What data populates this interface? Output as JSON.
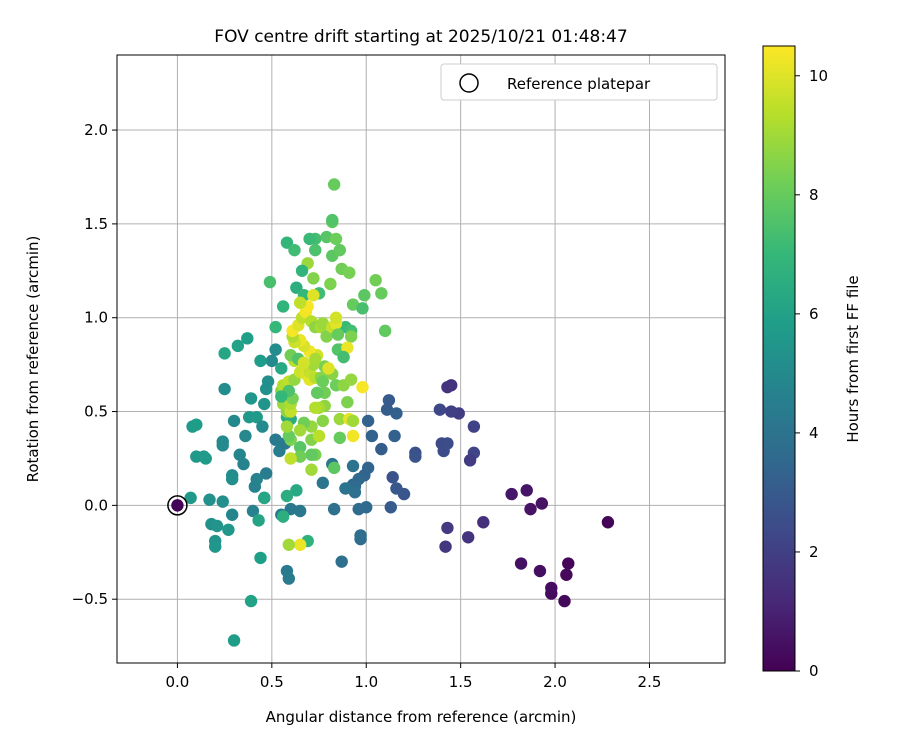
{
  "chart_data": {
    "type": "scatter",
    "title": "FOV centre drift starting at 2025/10/21 01:48:47",
    "xlabel": "Angular distance from reference (arcmin)",
    "ylabel": "Rotation from reference (arcmin)",
    "xlim": [
      -0.32,
      2.9
    ],
    "ylim": [
      -0.84,
      2.4
    ],
    "xticks": [
      0.0,
      0.5,
      1.0,
      1.5,
      2.0,
      2.5
    ],
    "xtick_labels": [
      "0.0",
      "0.5",
      "1.0",
      "1.5",
      "2.0",
      "2.5"
    ],
    "yticks": [
      -0.5,
      0.0,
      0.5,
      1.0,
      1.5,
      2.0
    ],
    "ytick_labels": [
      "−0.5",
      "0.0",
      "0.5",
      "1.0",
      "1.5",
      "2.0"
    ],
    "grid": true,
    "legend": {
      "position": "top-right",
      "entries": [
        "Reference platepar"
      ]
    },
    "reference_point": {
      "x": 0.0,
      "y": 0.0,
      "label": "Reference platepar"
    },
    "colorbar": {
      "label": "Hours from first FF file",
      "range": [
        0,
        10.5
      ],
      "ticks": [
        0,
        2,
        4,
        6,
        8,
        10
      ],
      "tick_labels": [
        "0",
        "2",
        "4",
        "6",
        "8",
        "10"
      ],
      "colormap": "viridis",
      "colormap_stops": [
        "#440154",
        "#482878",
        "#3e4989",
        "#31688e",
        "#26828e",
        "#1f9e89",
        "#35b779",
        "#6ece58",
        "#b5de2b",
        "#fde725"
      ]
    },
    "points": [
      {
        "x": 0.0,
        "y": 0.0,
        "h": 0.05
      },
      {
        "x": 2.28,
        "y": -0.09,
        "h": 0.1
      },
      {
        "x": 2.07,
        "y": -0.31,
        "h": 0.15
      },
      {
        "x": 2.06,
        "y": -0.37,
        "h": 0.2
      },
      {
        "x": 2.05,
        "y": -0.51,
        "h": 0.25
      },
      {
        "x": 1.98,
        "y": -0.47,
        "h": 0.3
      },
      {
        "x": 1.98,
        "y": -0.44,
        "h": 0.35
      },
      {
        "x": 1.92,
        "y": -0.35,
        "h": 0.4
      },
      {
        "x": 1.82,
        "y": -0.31,
        "h": 0.45
      },
      {
        "x": 1.93,
        "y": 0.01,
        "h": 0.5
      },
      {
        "x": 1.87,
        "y": -0.02,
        "h": 0.55
      },
      {
        "x": 1.85,
        "y": 0.08,
        "h": 0.6
      },
      {
        "x": 1.77,
        "y": 0.06,
        "h": 0.65
      },
      {
        "x": 1.62,
        "y": -0.09,
        "h": 1.4
      },
      {
        "x": 1.54,
        "y": -0.17,
        "h": 1.6
      },
      {
        "x": 1.42,
        "y": -0.22,
        "h": 1.7
      },
      {
        "x": 1.43,
        "y": -0.12,
        "h": 1.8
      },
      {
        "x": 1.45,
        "y": 0.64,
        "h": 1.5
      },
      {
        "x": 1.43,
        "y": 0.63,
        "h": 1.6
      },
      {
        "x": 1.49,
        "y": 0.49,
        "h": 1.9
      },
      {
        "x": 1.45,
        "y": 0.5,
        "h": 2.0
      },
      {
        "x": 1.57,
        "y": 0.42,
        "h": 2.1
      },
      {
        "x": 1.57,
        "y": 0.28,
        "h": 2.2
      },
      {
        "x": 1.55,
        "y": 0.24,
        "h": 1.9
      },
      {
        "x": 1.39,
        "y": 0.51,
        "h": 2.3
      },
      {
        "x": 1.4,
        "y": 0.33,
        "h": 2.4
      },
      {
        "x": 1.41,
        "y": 0.29,
        "h": 2.5
      },
      {
        "x": 1.43,
        "y": 0.33,
        "h": 2.5
      },
      {
        "x": 1.26,
        "y": 0.28,
        "h": 2.6
      },
      {
        "x": 1.26,
        "y": 0.26,
        "h": 2.7
      },
      {
        "x": 1.14,
        "y": 0.15,
        "h": 2.7
      },
      {
        "x": 1.2,
        "y": 0.06,
        "h": 2.8
      },
      {
        "x": 1.16,
        "y": 0.09,
        "h": 2.9
      },
      {
        "x": 1.13,
        "y": -0.01,
        "h": 3.0
      },
      {
        "x": 1.08,
        "y": 0.3,
        "h": 3.1
      },
      {
        "x": 1.15,
        "y": 0.37,
        "h": 3.2
      },
      {
        "x": 1.11,
        "y": 0.51,
        "h": 3.1
      },
      {
        "x": 1.16,
        "y": 0.49,
        "h": 3.2
      },
      {
        "x": 1.12,
        "y": 0.56,
        "h": 3.0
      },
      {
        "x": 1.01,
        "y": 0.45,
        "h": 3.3
      },
      {
        "x": 1.03,
        "y": 0.37,
        "h": 3.3
      },
      {
        "x": 0.99,
        "y": 0.16,
        "h": 3.4
      },
      {
        "x": 1.01,
        "y": 0.2,
        "h": 3.4
      },
      {
        "x": 0.96,
        "y": 0.14,
        "h": 3.5
      },
      {
        "x": 0.93,
        "y": 0.11,
        "h": 3.5
      },
      {
        "x": 0.94,
        "y": 0.1,
        "h": 3.6
      },
      {
        "x": 1.0,
        "y": -0.01,
        "h": 3.6
      },
      {
        "x": 0.96,
        "y": -0.02,
        "h": 3.7
      },
      {
        "x": 0.97,
        "y": -0.18,
        "h": 3.7
      },
      {
        "x": 0.97,
        "y": -0.16,
        "h": 3.8
      },
      {
        "x": 0.87,
        "y": -0.3,
        "h": 3.8
      },
      {
        "x": 0.83,
        "y": -0.02,
        "h": 3.9
      },
      {
        "x": 0.94,
        "y": 0.07,
        "h": 3.9
      },
      {
        "x": 0.89,
        "y": 0.09,
        "h": 4.0
      },
      {
        "x": 0.93,
        "y": 0.21,
        "h": 4.0
      },
      {
        "x": 0.77,
        "y": 0.12,
        "h": 4.1
      },
      {
        "x": 0.82,
        "y": 0.22,
        "h": 4.1
      },
      {
        "x": 0.65,
        "y": -0.03,
        "h": 4.2
      },
      {
        "x": 0.58,
        "y": -0.35,
        "h": 4.3
      },
      {
        "x": 0.59,
        "y": -0.39,
        "h": 4.4
      },
      {
        "x": 0.6,
        "y": -0.02,
        "h": 4.2
      },
      {
        "x": 0.55,
        "y": -0.05,
        "h": 4.4
      },
      {
        "x": 0.46,
        "y": 0.04,
        "h": 4.5
      },
      {
        "x": 0.47,
        "y": 0.17,
        "h": 4.4
      },
      {
        "x": 0.54,
        "y": 0.29,
        "h": 4.5
      },
      {
        "x": 0.57,
        "y": 0.33,
        "h": 4.3
      },
      {
        "x": 0.52,
        "y": 0.35,
        "h": 4.3
      },
      {
        "x": 0.41,
        "y": 0.1,
        "h": 4.6
      },
      {
        "x": 0.4,
        "y": -0.03,
        "h": 4.6
      },
      {
        "x": 0.42,
        "y": 0.14,
        "h": 4.7
      },
      {
        "x": 0.35,
        "y": 0.22,
        "h": 4.7
      },
      {
        "x": 0.29,
        "y": -0.05,
        "h": 4.8
      },
      {
        "x": 0.33,
        "y": 0.27,
        "h": 4.8
      },
      {
        "x": 0.36,
        "y": 0.37,
        "h": 4.9
      },
      {
        "x": 0.3,
        "y": 0.45,
        "h": 4.9
      },
      {
        "x": 0.24,
        "y": 0.34,
        "h": 5.0
      },
      {
        "x": 0.24,
        "y": 0.32,
        "h": 5.0
      },
      {
        "x": 0.25,
        "y": 0.62,
        "h": 5.1
      },
      {
        "x": 0.29,
        "y": 0.16,
        "h": 5.1
      },
      {
        "x": 0.29,
        "y": 0.14,
        "h": 5.2
      },
      {
        "x": 0.24,
        "y": 0.02,
        "h": 5.2
      },
      {
        "x": 0.17,
        "y": 0.03,
        "h": 5.3
      },
      {
        "x": 0.18,
        "y": -0.1,
        "h": 5.3
      },
      {
        "x": 0.21,
        "y": -0.11,
        "h": 5.4
      },
      {
        "x": 0.2,
        "y": -0.19,
        "h": 5.4
      },
      {
        "x": 0.2,
        "y": -0.22,
        "h": 5.5
      },
      {
        "x": 0.27,
        "y": -0.13,
        "h": 5.5
      },
      {
        "x": 0.07,
        "y": 0.04,
        "h": 5.6
      },
      {
        "x": 0.1,
        "y": 0.26,
        "h": 5.6
      },
      {
        "x": 0.14,
        "y": 0.26,
        "h": 5.6
      },
      {
        "x": 0.15,
        "y": 0.25,
        "h": 5.7
      },
      {
        "x": 0.08,
        "y": 0.42,
        "h": 5.7
      },
      {
        "x": 0.1,
        "y": 0.43,
        "h": 5.8
      },
      {
        "x": 0.3,
        "y": -0.72,
        "h": 5.8
      },
      {
        "x": 0.39,
        "y": -0.51,
        "h": 6.0
      },
      {
        "x": 0.44,
        "y": -0.28,
        "h": 5.9
      },
      {
        "x": 0.43,
        "y": -0.08,
        "h": 6.1
      },
      {
        "x": 0.46,
        "y": 0.04,
        "h": 6.2
      },
      {
        "x": 0.63,
        "y": 0.08,
        "h": 6.3
      },
      {
        "x": 0.58,
        "y": 0.05,
        "h": 6.5
      },
      {
        "x": 0.56,
        "y": -0.06,
        "h": 6.6
      },
      {
        "x": 0.69,
        "y": -0.19,
        "h": 6.7
      },
      {
        "x": 0.5,
        "y": 0.77,
        "h": 5.0
      },
      {
        "x": 0.52,
        "y": 0.83,
        "h": 5.1
      },
      {
        "x": 0.37,
        "y": 0.89,
        "h": 5.9
      },
      {
        "x": 0.32,
        "y": 0.85,
        "h": 6.0
      },
      {
        "x": 0.25,
        "y": 0.81,
        "h": 6.2
      },
      {
        "x": 0.38,
        "y": 0.47,
        "h": 5.6
      },
      {
        "x": 0.42,
        "y": 0.47,
        "h": 5.7
      },
      {
        "x": 0.39,
        "y": 0.57,
        "h": 5.5
      },
      {
        "x": 0.46,
        "y": 0.54,
        "h": 5.4
      },
      {
        "x": 0.45,
        "y": 0.42,
        "h": 5.0
      },
      {
        "x": 0.47,
        "y": 0.62,
        "h": 5.3
      },
      {
        "x": 0.48,
        "y": 0.66,
        "h": 5.2
      },
      {
        "x": 0.44,
        "y": 0.77,
        "h": 5.8
      },
      {
        "x": 0.55,
        "y": 0.73,
        "h": 6.3
      },
      {
        "x": 0.58,
        "y": 0.47,
        "h": 6.4
      },
      {
        "x": 0.6,
        "y": 0.46,
        "h": 6.5
      },
      {
        "x": 0.52,
        "y": 0.95,
        "h": 7.0
      },
      {
        "x": 0.56,
        "y": 1.06,
        "h": 6.8
      },
      {
        "x": 0.63,
        "y": 1.16,
        "h": 6.6
      },
      {
        "x": 0.58,
        "y": 1.4,
        "h": 6.9
      },
      {
        "x": 0.62,
        "y": 1.36,
        "h": 7.2
      },
      {
        "x": 0.49,
        "y": 1.19,
        "h": 7.4
      },
      {
        "x": 0.73,
        "y": 1.42,
        "h": 7.3
      },
      {
        "x": 0.73,
        "y": 1.36,
        "h": 7.5
      },
      {
        "x": 0.7,
        "y": 1.42,
        "h": 7.1
      },
      {
        "x": 0.79,
        "y": 1.43,
        "h": 7.7
      },
      {
        "x": 0.82,
        "y": 1.33,
        "h": 7.8
      },
      {
        "x": 0.82,
        "y": 1.51,
        "h": 7.9
      },
      {
        "x": 0.83,
        "y": 1.71,
        "h": 8.0
      },
      {
        "x": 0.84,
        "y": 1.42,
        "h": 8.1
      },
      {
        "x": 0.82,
        "y": 1.52,
        "h": 7.6
      },
      {
        "x": 0.86,
        "y": 1.36,
        "h": 7.9
      },
      {
        "x": 0.87,
        "y": 1.26,
        "h": 8.2
      },
      {
        "x": 0.91,
        "y": 1.24,
        "h": 8.3
      },
      {
        "x": 0.81,
        "y": 1.18,
        "h": 8.4
      },
      {
        "x": 0.75,
        "y": 1.13,
        "h": 7.2
      },
      {
        "x": 0.72,
        "y": 1.21,
        "h": 8.5
      },
      {
        "x": 0.67,
        "y": 1.12,
        "h": 7.0
      },
      {
        "x": 0.69,
        "y": 1.29,
        "h": 8.9
      },
      {
        "x": 0.66,
        "y": 1.25,
        "h": 6.8
      },
      {
        "x": 0.93,
        "y": 1.07,
        "h": 8.0
      },
      {
        "x": 0.98,
        "y": 1.05,
        "h": 7.4
      },
      {
        "x": 0.99,
        "y": 1.12,
        "h": 7.8
      },
      {
        "x": 1.05,
        "y": 1.2,
        "h": 8.2
      },
      {
        "x": 1.08,
        "y": 1.13,
        "h": 8.0
      },
      {
        "x": 1.1,
        "y": 0.93,
        "h": 7.9
      },
      {
        "x": 0.89,
        "y": 0.95,
        "h": 7.1
      },
      {
        "x": 0.92,
        "y": 0.93,
        "h": 7.3
      },
      {
        "x": 0.86,
        "y": 0.83,
        "h": 7.7
      },
      {
        "x": 0.85,
        "y": 0.83,
        "h": 7.6
      },
      {
        "x": 0.78,
        "y": 0.74,
        "h": 8.3
      },
      {
        "x": 0.82,
        "y": 0.7,
        "h": 8.6
      },
      {
        "x": 0.84,
        "y": 0.64,
        "h": 8.1
      },
      {
        "x": 0.88,
        "y": 0.64,
        "h": 8.7
      },
      {
        "x": 0.92,
        "y": 0.67,
        "h": 8.8
      },
      {
        "x": 0.9,
        "y": 0.55,
        "h": 8.4
      },
      {
        "x": 0.86,
        "y": 0.46,
        "h": 8.9
      },
      {
        "x": 0.78,
        "y": 0.53,
        "h": 8.7
      },
      {
        "x": 0.75,
        "y": 0.52,
        "h": 9.1
      },
      {
        "x": 0.77,
        "y": 0.45,
        "h": 8.6
      },
      {
        "x": 0.73,
        "y": 0.52,
        "h": 9.3
      },
      {
        "x": 0.71,
        "y": 0.42,
        "h": 8.8
      },
      {
        "x": 0.67,
        "y": 0.44,
        "h": 8.2
      },
      {
        "x": 0.65,
        "y": 0.4,
        "h": 9.0
      },
      {
        "x": 0.71,
        "y": 0.35,
        "h": 8.5
      },
      {
        "x": 0.75,
        "y": 0.37,
        "h": 9.4
      },
      {
        "x": 0.73,
        "y": 0.27,
        "h": 8.3
      },
      {
        "x": 0.71,
        "y": 0.19,
        "h": 9.0
      },
      {
        "x": 0.71,
        "y": 0.27,
        "h": 7.9
      },
      {
        "x": 0.65,
        "y": 0.31,
        "h": 7.7
      },
      {
        "x": 0.65,
        "y": 0.26,
        "h": 8.2
      },
      {
        "x": 0.6,
        "y": 0.25,
        "h": 9.5
      },
      {
        "x": 0.6,
        "y": 0.35,
        "h": 8.4
      },
      {
        "x": 0.59,
        "y": 0.37,
        "h": 8.0
      },
      {
        "x": 0.58,
        "y": 0.42,
        "h": 9.0
      },
      {
        "x": 0.58,
        "y": 0.5,
        "h": 8.6
      },
      {
        "x": 0.56,
        "y": 0.54,
        "h": 8.9
      },
      {
        "x": 0.6,
        "y": 0.5,
        "h": 9.6
      },
      {
        "x": 0.6,
        "y": 0.54,
        "h": 9.2
      },
      {
        "x": 0.61,
        "y": 0.57,
        "h": 8.3
      },
      {
        "x": 0.55,
        "y": 0.61,
        "h": 8.7
      },
      {
        "x": 0.56,
        "y": 0.64,
        "h": 9.3
      },
      {
        "x": 0.59,
        "y": 0.66,
        "h": 9.5
      },
      {
        "x": 0.62,
        "y": 0.67,
        "h": 8.8
      },
      {
        "x": 0.65,
        "y": 0.71,
        "h": 9.7
      },
      {
        "x": 0.68,
        "y": 0.7,
        "h": 9.9
      },
      {
        "x": 0.7,
        "y": 0.67,
        "h": 10.1
      },
      {
        "x": 0.7,
        "y": 0.71,
        "h": 9.6
      },
      {
        "x": 0.72,
        "y": 0.75,
        "h": 9.0
      },
      {
        "x": 0.73,
        "y": 0.68,
        "h": 9.4
      },
      {
        "x": 0.76,
        "y": 0.68,
        "h": 8.6
      },
      {
        "x": 0.77,
        "y": 0.66,
        "h": 8.1
      },
      {
        "x": 0.8,
        "y": 0.73,
        "h": 10.0
      },
      {
        "x": 0.74,
        "y": 0.8,
        "h": 9.8
      },
      {
        "x": 0.7,
        "y": 0.82,
        "h": 10.3
      },
      {
        "x": 0.67,
        "y": 0.85,
        "h": 9.9
      },
      {
        "x": 0.65,
        "y": 0.88,
        "h": 10.2
      },
      {
        "x": 0.62,
        "y": 0.87,
        "h": 9.7
      },
      {
        "x": 0.61,
        "y": 0.9,
        "h": 9.2
      },
      {
        "x": 0.61,
        "y": 0.93,
        "h": 10.4
      },
      {
        "x": 0.64,
        "y": 0.96,
        "h": 10.0
      },
      {
        "x": 0.66,
        "y": 1.0,
        "h": 9.5
      },
      {
        "x": 0.68,
        "y": 1.03,
        "h": 10.3
      },
      {
        "x": 0.71,
        "y": 0.98,
        "h": 9.3
      },
      {
        "x": 0.73,
        "y": 0.95,
        "h": 8.7
      },
      {
        "x": 0.76,
        "y": 0.95,
        "h": 9.1
      },
      {
        "x": 0.77,
        "y": 0.97,
        "h": 8.9
      },
      {
        "x": 0.79,
        "y": 0.9,
        "h": 8.5
      },
      {
        "x": 0.82,
        "y": 0.95,
        "h": 9.6
      },
      {
        "x": 0.84,
        "y": 0.97,
        "h": 10.1
      },
      {
        "x": 0.84,
        "y": 1.0,
        "h": 9.8
      },
      {
        "x": 0.69,
        "y": 1.06,
        "h": 10.4
      },
      {
        "x": 0.72,
        "y": 1.12,
        "h": 10.0
      },
      {
        "x": 0.65,
        "y": 1.08,
        "h": 9.5
      },
      {
        "x": 0.62,
        "y": 0.77,
        "h": 9.4
      },
      {
        "x": 0.6,
        "y": 0.8,
        "h": 8.2
      },
      {
        "x": 0.64,
        "y": 0.78,
        "h": 7.6
      },
      {
        "x": 0.67,
        "y": 0.76,
        "h": 9.8
      },
      {
        "x": 0.73,
        "y": 0.78,
        "h": 9.1
      },
      {
        "x": 0.85,
        "y": 0.91,
        "h": 8.0
      },
      {
        "x": 0.92,
        "y": 0.9,
        "h": 8.4
      },
      {
        "x": 0.9,
        "y": 0.84,
        "h": 10.2
      },
      {
        "x": 0.88,
        "y": 0.79,
        "h": 7.3
      },
      {
        "x": 0.91,
        "y": 0.46,
        "h": 10.1
      },
      {
        "x": 0.93,
        "y": 0.45,
        "h": 9.0
      },
      {
        "x": 0.93,
        "y": 0.37,
        "h": 10.3
      },
      {
        "x": 0.98,
        "y": 0.63,
        "h": 10.4
      },
      {
        "x": 0.86,
        "y": 0.36,
        "h": 8.0
      },
      {
        "x": 0.83,
        "y": 0.2,
        "h": 7.8
      },
      {
        "x": 0.78,
        "y": 0.6,
        "h": 8.2
      },
      {
        "x": 0.74,
        "y": 0.6,
        "h": 7.9
      },
      {
        "x": 0.65,
        "y": -0.21,
        "h": 10.2
      },
      {
        "x": 0.59,
        "y": -0.21,
        "h": 9.0
      },
      {
        "x": 0.59,
        "y": 0.61,
        "h": 7.5
      },
      {
        "x": 0.55,
        "y": 0.58,
        "h": 7.0
      }
    ]
  }
}
